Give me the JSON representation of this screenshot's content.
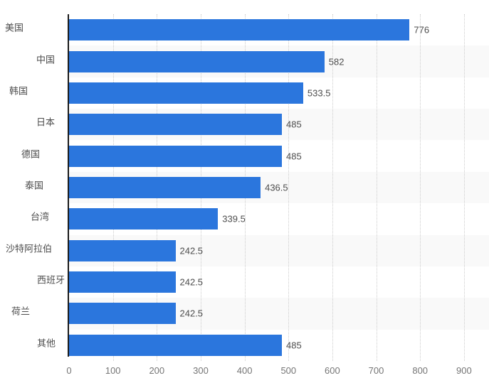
{
  "chart_data": {
    "type": "bar",
    "orientation": "horizontal",
    "title": "",
    "xlabel": "",
    "ylabel": "",
    "categories": [
      "美国",
      "中国",
      "韩国",
      "日本",
      "德国",
      "泰国",
      "台湾",
      "沙特阿拉伯",
      "西班牙",
      "荷兰",
      "其他"
    ],
    "values": [
      776,
      582,
      533.5,
      485,
      485,
      436.5,
      339.5,
      242.5,
      242.5,
      242.5,
      485
    ],
    "value_labels": [
      "776",
      "582",
      "533.5",
      "485",
      "485",
      "436.5",
      "339.5",
      "242.5",
      "242.5",
      "242.5",
      "485"
    ],
    "x_ticks": [
      0,
      100,
      200,
      300,
      400,
      500,
      600,
      700,
      800,
      900
    ],
    "x_tick_labels": [
      "0",
      "100",
      "200",
      "300",
      "400",
      "500",
      "600",
      "700",
      "800",
      "900"
    ],
    "xlim": [
      0,
      900
    ],
    "grid": "vertical-dotted",
    "legend": "none",
    "row_shading": "alternate"
  },
  "colors": {
    "bar": "#2b76dd",
    "row_band": "#f9f9f9",
    "gridline": "#cccccc",
    "axis_line": "#1a1a1a",
    "category_text": "#4d4d4d",
    "value_text": "#4d4d4d",
    "tick_text": "#757575",
    "background": "#ffffff"
  }
}
